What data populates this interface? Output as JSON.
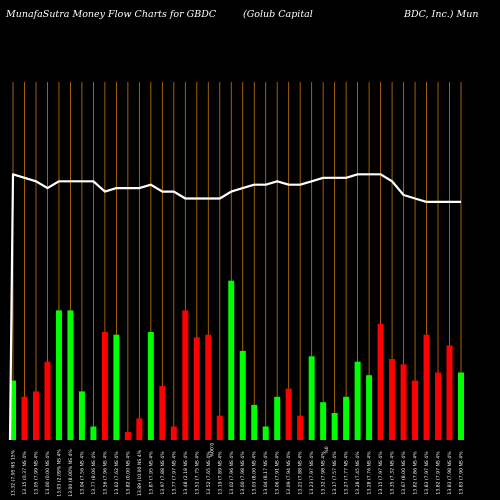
{
  "header": {
    "left": "MunafaSutra  Money Flow  Charts for GBDC",
    "middle": "(Golub Capital",
    "right": "BDC, Inc.) Mun"
  },
  "colors": {
    "background": "#000000",
    "up": "#00ff00",
    "down": "#ff0000",
    "grid": "#c8780a",
    "line": "#ffffff",
    "text": "#ffffff"
  },
  "chart_data": {
    "type": "bar",
    "grid": "vertical",
    "ylim": [
      0,
      100
    ],
    "line_ylim": [
      0,
      100
    ],
    "categories": [
      "13.32 (7.95 NS 15%",
      "13.15 (0.37 NS 4%",
      "13.05 (7.99 NS 4%",
      "13.00 (0.00 NS 4%",
      "13.03 (2.09% NS 4%",
      "13.00 (8.00% NS 4%",
      "13.04 (7.56 NS 4%",
      "13.77 (8.06 NS 4%",
      "13.56 (7.96 NS 4%",
      "13.62 (7.62 NS 4%",
      "13.82 (0.00 NS 4%",
      "13.89 (10.00 NS 4%",
      "13.87 (7.95 NS 4%",
      "13.97 (7.88 NS 4%",
      "13.77 (7.97 NS 4%",
      "13.48 (2.18 NS 4%",
      "13.51 (7.75 NS 4%",
      "13.52 (7.65 NS 4%",
      "13.19 (7.89 NS 4%",
      "13.02 (7.96 NS 4%",
      "13.00 (7.98 NS 4%",
      "13.03 (8.00 NS 4%",
      "13.04 (8.17 NS 4%",
      "13.06 (7.91 NS 4%",
      "13.09 (7.94 NS 4%",
      "13.21 (7.88 NS 4%",
      "13.23 (7.97 NS 4%",
      "13.32 (7.98 NS 4%",
      "13.17 (7.57 NS 4%",
      "13.27 (7.77 NS 4%",
      "13.28 (7.45 NS 4%",
      "13.28 (7.76 NS 4%",
      "13.15 (7.97 NS 4%",
      "13.35 (7.32 NS 4%",
      "13.67 (8.00 NS 4%",
      "13.82 (7.86 NS 4%",
      "13.83 (7.97 NS 4%",
      "13.82 (7.97 NS 4%",
      "13.83 (7.98 NS 4%",
      "13.83 (7.90 NS 4%"
    ],
    "series": [
      {
        "values": [
          22,
          16,
          18,
          29,
          48,
          48,
          18,
          5,
          40,
          39,
          3,
          8,
          40,
          20,
          5,
          48,
          38,
          39,
          9,
          59,
          33,
          13,
          5,
          16,
          19,
          9,
          31,
          14,
          10,
          16,
          29,
          24,
          43,
          30,
          28,
          22,
          39,
          25,
          35,
          25
        ],
        "directions": [
          "up",
          "down",
          "down",
          "down",
          "up",
          "up",
          "up",
          "up",
          "down",
          "up",
          "down",
          "down",
          "up",
          "down",
          "down",
          "down",
          "down",
          "down",
          "down",
          "up",
          "up",
          "up",
          "up",
          "up",
          "down",
          "down",
          "up",
          "up",
          "up",
          "up",
          "up",
          "up",
          "down",
          "down",
          "down",
          "down",
          "down",
          "down",
          "down",
          "up"
        ]
      },
      {
        "name": "",
        "line": [
          77,
          76,
          75,
          73,
          75,
          75,
          75,
          75,
          72,
          73,
          73,
          73,
          74,
          72,
          72,
          70,
          70,
          70,
          70,
          72,
          73,
          74,
          74,
          75,
          74,
          74,
          75,
          76,
          76,
          76,
          77,
          77,
          77,
          75,
          71,
          70,
          69,
          69,
          69,
          69
        ]
      }
    ],
    "special_ticks": [
      {
        "index": 17,
        "text": "0.00%"
      },
      {
        "index": 27,
        "text": "0%"
      }
    ]
  }
}
